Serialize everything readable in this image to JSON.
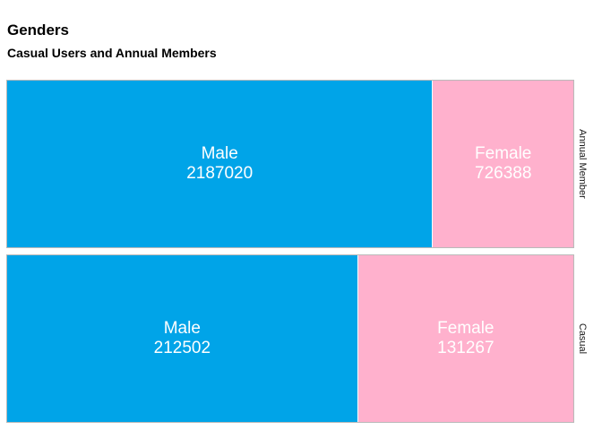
{
  "title": "Genders",
  "subtitle": "Casual Users and Annual Members",
  "colors": {
    "male": "#00a4e8",
    "female": "#ffb1cd"
  },
  "chart_data": {
    "type": "treemap",
    "title": "Genders",
    "subtitle": "Casual Users and Annual Members",
    "facets": [
      {
        "name": "Annual Member",
        "tiles": [
          {
            "label": "Male",
            "value": 2187020
          },
          {
            "label": "Female",
            "value": 726388
          }
        ]
      },
      {
        "name": "Casual",
        "tiles": [
          {
            "label": "Male",
            "value": 212502
          },
          {
            "label": "Female",
            "value": 131267
          }
        ]
      }
    ]
  }
}
